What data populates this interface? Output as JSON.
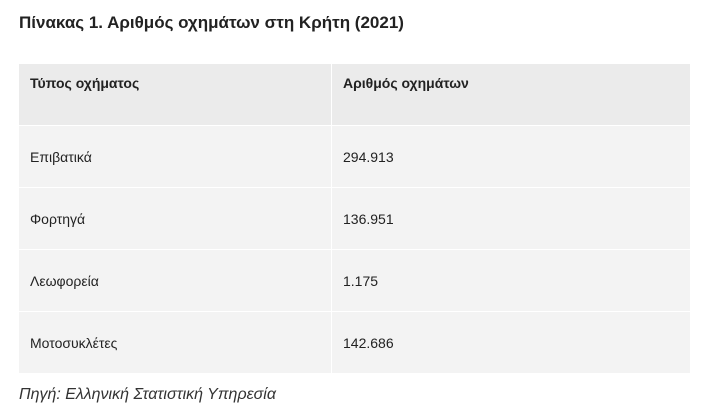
{
  "title": "Πίνακας 1. Αριθμός οχημάτων στη Κρήτη (2021)",
  "table": {
    "header": [
      "Τύπος οχήματος",
      "Αριθμός οχημάτων"
    ],
    "rows": [
      [
        "Επιβατικά",
        "294.913"
      ],
      [
        "Φορτηγά",
        "136.951"
      ],
      [
        "Λεωφορεία",
        "1.175"
      ],
      [
        "Μοτοσυκλέτες",
        "142.686"
      ]
    ]
  },
  "source": "Πηγή: Ελληνική Στατιστική Υπηρεσία"
}
